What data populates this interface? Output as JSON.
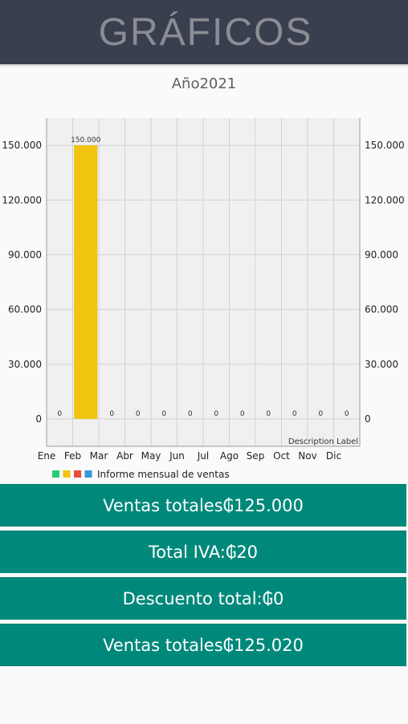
{
  "header": {
    "title": "GRÁFICOS"
  },
  "chart_data": {
    "type": "bar",
    "title": "Año2021",
    "categories": [
      "Ene",
      "Feb",
      "Mar",
      "Abr",
      "May",
      "Jun",
      "Jul",
      "Ago",
      "Sep",
      "Oct",
      "Nov",
      "Dic"
    ],
    "series": [
      {
        "values": [
          0,
          150000,
          0,
          0,
          0,
          0,
          0,
          0,
          0,
          0,
          0,
          0
        ],
        "value_labels": [
          "0",
          "150.000",
          "0",
          "0",
          "0",
          "0",
          "0",
          "0",
          "0",
          "0",
          "0",
          "0"
        ]
      }
    ],
    "ylim": [
      -15000,
      165000
    ],
    "yticks": [
      0,
      30000,
      60000,
      90000,
      120000,
      150000
    ],
    "ytick_labels": [
      "0",
      "30.000",
      "60.000",
      "90.000",
      "120.000",
      "150.000"
    ],
    "right_axis": true,
    "grid": true,
    "legend": {
      "label": "Informe mensual de ventas",
      "swatch_colors": [
        "#2ecc71",
        "#f1c40f",
        "#e74c3c",
        "#3498db"
      ],
      "placement": "bottom-left"
    },
    "description_label": "Description Label",
    "colors": {
      "bar": "#f1c40f",
      "grid": "#d2d2d2",
      "plot_bg": "#f0f0f0"
    }
  },
  "summary": [
    {
      "label": "Ventas totales₲125.000"
    },
    {
      "label": "Total IVA:₲20"
    },
    {
      "label": "Descuento total:₲0"
    },
    {
      "label": "Ventas totales₲125.020"
    }
  ]
}
